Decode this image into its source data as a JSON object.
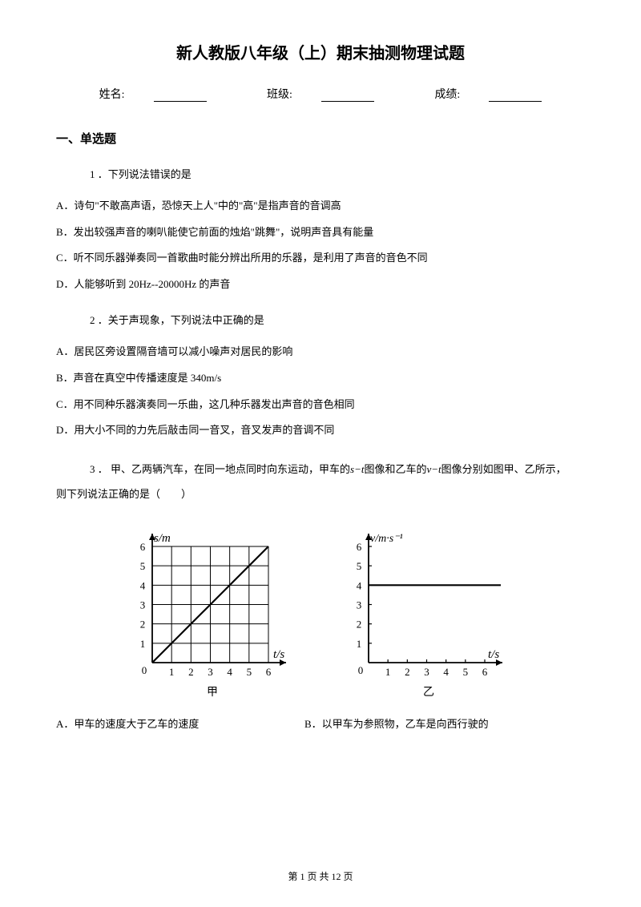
{
  "title": "新人教版八年级（上）期末抽测物理试题",
  "info": {
    "name_label": "姓名:",
    "class_label": "班级:",
    "score_label": "成绩:"
  },
  "section1_title": "一、单选题",
  "q1": {
    "num": "1 ．",
    "text": "下列说法错误的是",
    "A": "A．诗句\"不敢高声语，恐惊天上人\"中的\"高\"是指声音的音调高",
    "B": "B．发出较强声音的喇叭能使它前面的烛焰\"跳舞\"，说明声音具有能量",
    "C": "C．听不同乐器弹奏同一首歌曲时能分辨出所用的乐器，是利用了声音的音色不同",
    "D": "D．人能够听到 20Hz--20000Hz 的声音"
  },
  "q2": {
    "num": "2 ．",
    "text": "关于声现象，下列说法中正确的是",
    "A": "A．居民区旁设置隔音墙可以减小噪声对居民的影响",
    "B": "B．声音在真空中传播速度是 340m/s",
    "C": "C．用不同种乐器演奏同一乐曲，这几种乐器发出声音的音色相同",
    "D": "D．用大小不同的力先后敲击同一音叉，音叉发声的音调不同"
  },
  "q3": {
    "num": "3 ．",
    "pre": " 甲、乙两辆汽车，在同一地点同时向东运动，甲车的",
    "mid1": "图像和乙车的",
    "mid2": "图像分别如图甲、乙所示，",
    "tail": "则下列说法正确的是（　　）",
    "A": "A．甲车的速度大于乙车的速度",
    "B": "B．以甲车为参照物，乙车是向西行驶的"
  },
  "chart1": {
    "label": "甲",
    "y_axis": "s/m",
    "x_axis": "t/s",
    "ticks": [
      "0",
      "1",
      "2",
      "3",
      "4",
      "5",
      "6"
    ],
    "yticks": [
      "1",
      "2",
      "3",
      "4",
      "5",
      "6"
    ],
    "line_start": [
      0,
      0
    ],
    "line_end": [
      6,
      6
    ],
    "grid_color": "#000000",
    "bg": "#ffffff"
  },
  "chart2": {
    "label": "乙",
    "y_axis": "v/m·s⁻¹",
    "x_axis": "t/s",
    "ticks": [
      "0",
      "1",
      "2",
      "3",
      "4",
      "5",
      "6"
    ],
    "yticks": [
      "1",
      "2",
      "3",
      "4",
      "5",
      "6"
    ],
    "h_line_y": 4,
    "bg": "#ffffff"
  },
  "footer": "第 1 页 共 12 页"
}
